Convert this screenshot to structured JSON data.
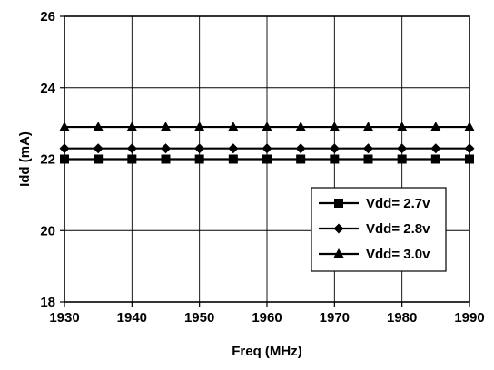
{
  "chart_data": {
    "type": "line",
    "title": "",
    "xlabel": "Freq (MHz)",
    "ylabel": "Idd (mA)",
    "xlim": [
      1930,
      1990
    ],
    "ylim": [
      18,
      26
    ],
    "x_ticks": [
      1930,
      1940,
      1950,
      1960,
      1970,
      1980,
      1990
    ],
    "y_ticks": [
      18,
      20,
      22,
      24,
      26
    ],
    "grid": true,
    "legend_position": "lower-right",
    "x": [
      1930,
      1935,
      1940,
      1945,
      1950,
      1955,
      1960,
      1965,
      1970,
      1975,
      1980,
      1985,
      1990
    ],
    "series": [
      {
        "name": "Vdd= 2.7v",
        "marker": "square",
        "values": [
          22.0,
          22.0,
          22.0,
          22.0,
          22.0,
          22.0,
          22.0,
          22.0,
          22.0,
          22.0,
          22.0,
          22.0,
          22.0
        ]
      },
      {
        "name": "Vdd= 2.8v",
        "marker": "diamond",
        "values": [
          22.3,
          22.3,
          22.3,
          22.3,
          22.3,
          22.3,
          22.3,
          22.3,
          22.3,
          22.3,
          22.3,
          22.3,
          22.3
        ]
      },
      {
        "name": "Vdd= 3.0v",
        "marker": "triangle",
        "values": [
          22.9,
          22.9,
          22.9,
          22.9,
          22.9,
          22.9,
          22.9,
          22.9,
          22.9,
          22.9,
          22.9,
          22.9,
          22.9
        ]
      }
    ]
  },
  "colors": {
    "line": "#000000",
    "grid": "#000000",
    "background": "#ffffff"
  }
}
